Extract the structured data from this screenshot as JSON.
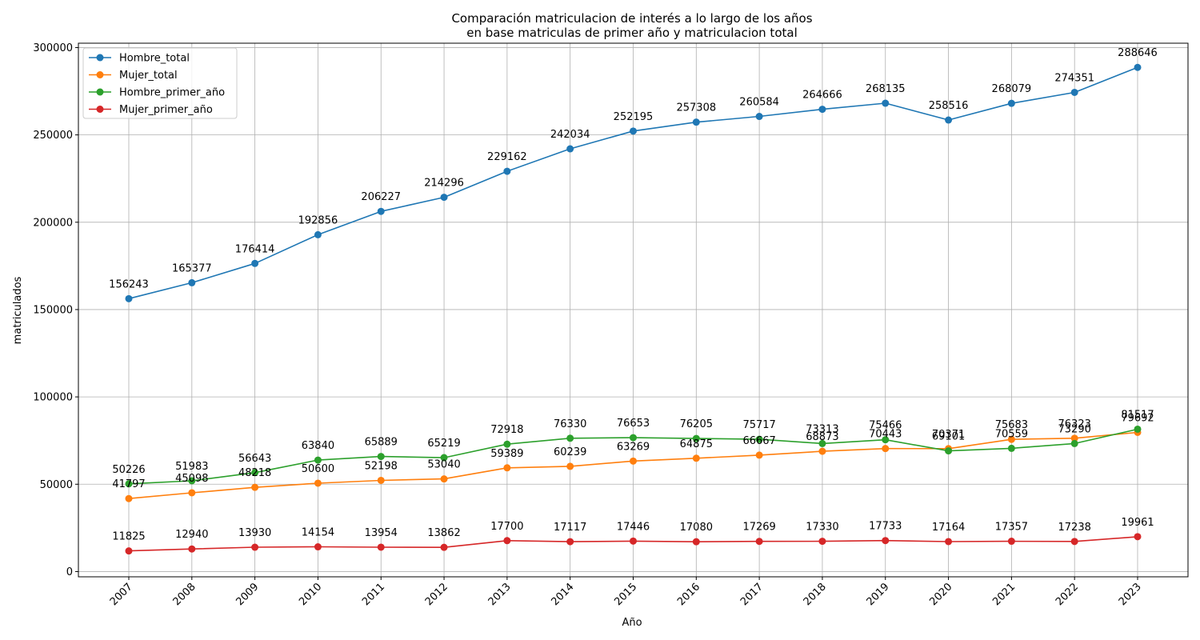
{
  "chart_data": {
    "type": "line",
    "title_line1": "Comparación matriculacion de interés a lo largo de los años",
    "title_line2": "en base matriculas de primer año y matriculacion total",
    "xlabel": "Año",
    "ylabel": "matriculados",
    "x": [
      2007,
      2008,
      2009,
      2010,
      2011,
      2012,
      2013,
      2014,
      2015,
      2016,
      2017,
      2018,
      2019,
      2020,
      2021,
      2022,
      2023
    ],
    "x_tick_labels": [
      "2007",
      "2008",
      "2009",
      "2010",
      "2011",
      "2012",
      "2013",
      "2014",
      "2015",
      "2016",
      "2017",
      "2018",
      "2019",
      "2020",
      "2021",
      "2022",
      "2023"
    ],
    "y_ticks": [
      0,
      50000,
      100000,
      150000,
      200000,
      250000,
      300000
    ],
    "y_tick_labels": [
      "0",
      "50000",
      "100000",
      "150000",
      "200000",
      "250000",
      "300000"
    ],
    "ylim": [
      -3000,
      302500
    ],
    "grid": true,
    "legend_position": "top-left",
    "series": [
      {
        "name": "Hombre_total",
        "color": "#1f77b4",
        "values": [
          156243,
          165377,
          176414,
          192856,
          206227,
          214296,
          229162,
          242034,
          252195,
          257308,
          260584,
          264666,
          268135,
          258516,
          268079,
          274351,
          288646
        ]
      },
      {
        "name": "Mujer_total",
        "color": "#ff7f0e",
        "values": [
          41797,
          45098,
          48218,
          50600,
          52198,
          53040,
          59389,
          60239,
          63269,
          64875,
          66667,
          68873,
          70443,
          70371,
          75683,
          76323,
          79692
        ]
      },
      {
        "name": "Hombre_primer_año",
        "color": "#2ca02c",
        "values": [
          50226,
          51983,
          56643,
          63840,
          65889,
          65219,
          72918,
          76330,
          76653,
          76205,
          75717,
          73313,
          75466,
          69101,
          70559,
          73290,
          81517
        ]
      },
      {
        "name": "Mujer_primer_año",
        "color": "#d62728",
        "values": [
          11825,
          12940,
          13930,
          14154,
          13954,
          13862,
          17700,
          17117,
          17446,
          17080,
          17269,
          17330,
          17733,
          17164,
          17357,
          17238,
          19961
        ]
      }
    ]
  }
}
